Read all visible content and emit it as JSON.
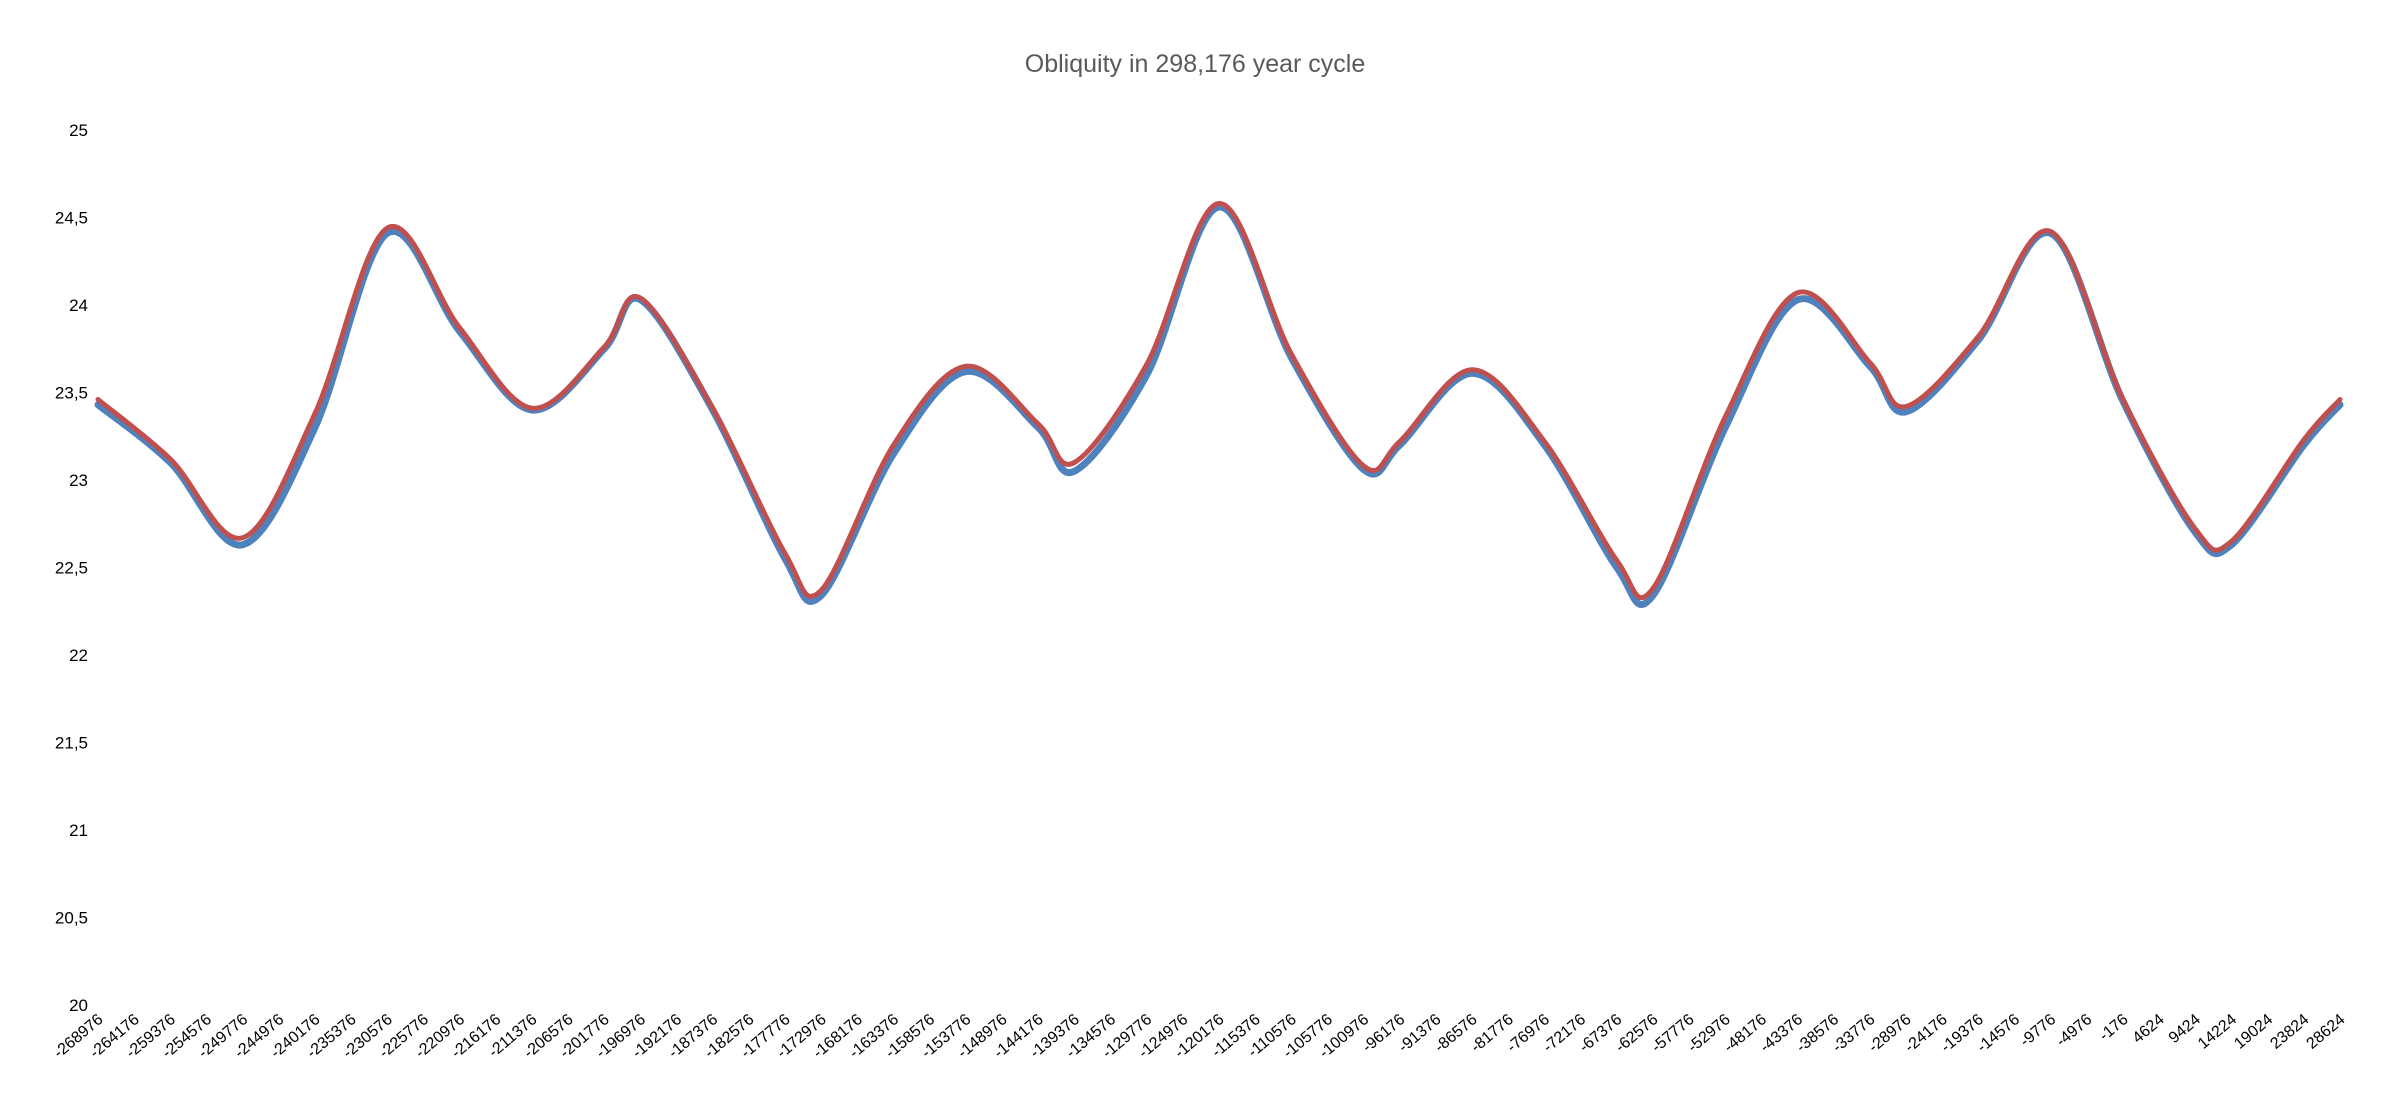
{
  "chart_data": {
    "type": "line",
    "title": "Obliquity in 298,176 year cycle",
    "xlabel": "",
    "ylabel": "",
    "ylim": [
      20,
      25
    ],
    "yticks": [
      "20",
      "20,5",
      "21",
      "21,5",
      "22",
      "22,5",
      "23",
      "23,5",
      "24",
      "24,5",
      "25"
    ],
    "grid": false,
    "legend": "none",
    "x": [
      -268976,
      -264176,
      -259376,
      -254576,
      -249776,
      -244976,
      -240176,
      -235376,
      -230576,
      -225776,
      -220976,
      -216176,
      -211376,
      -206576,
      -201776,
      -196976,
      -192176,
      -187376,
      -182576,
      -177776,
      -172976,
      -168176,
      -163376,
      -158576,
      -153776,
      -148976,
      -144176,
      -139376,
      -134576,
      -129776,
      -124976,
      -120176,
      -115376,
      -110576,
      -105776,
      -100976,
      -96176,
      -91376,
      -86576,
      -81776,
      -76976,
      -72176,
      -67376,
      -62576,
      -57776,
      -52976,
      -48176,
      -43376,
      -38576,
      -33776,
      -28976,
      -24176,
      -19376,
      -14576,
      -9776,
      -4976,
      -176,
      4624,
      9424,
      14224,
      19024,
      23824,
      28624
    ],
    "x_labels": [
      "-268976",
      "-264176",
      "-259376",
      "-254576",
      "-249776",
      "-244976",
      "-240176",
      "-235376",
      "-230576",
      "-225776",
      "-220976",
      "-216176",
      "-211376",
      "-206576",
      "-201776",
      "-196976",
      "-192176",
      "-187376",
      "-182576",
      "-177776",
      "-172976",
      "-168176",
      "-163376",
      "-158576",
      "-153776",
      "-148976",
      "-144176",
      "-139376",
      "-134576",
      "-129776",
      "-124976",
      "-120176",
      "-115376",
      "-110576",
      "-105776",
      "-100976",
      "-96176",
      "-91376",
      "-86576",
      "-81776",
      "-76976",
      "-72176",
      "-67376",
      "-62576",
      "-57776",
      "-52976",
      "-48176",
      "-43376",
      "-38576",
      "-33776",
      "-28976",
      "-24176",
      "-19376",
      "-14576",
      "-9776",
      "-4976",
      "-176",
      "4624",
      "9424",
      "14224",
      "19024",
      "23824",
      "28624"
    ],
    "series": [
      {
        "color": "#4f81bd",
        "values": [
          [
            -268976,
            23.43
          ],
          [
            -259376,
            23.1
          ],
          [
            -249776,
            22.63
          ],
          [
            -240176,
            23.3
          ],
          [
            -230576,
            24.41
          ],
          [
            -220976,
            23.85
          ],
          [
            -211376,
            23.4
          ],
          [
            -201776,
            23.75
          ],
          [
            -196976,
            24.03
          ],
          [
            -187376,
            23.4
          ],
          [
            -177776,
            22.55
          ],
          [
            -172976,
            22.34
          ],
          [
            -163376,
            23.15
          ],
          [
            -153776,
            23.62
          ],
          [
            -144176,
            23.3
          ],
          [
            -139376,
            23.05
          ],
          [
            -129776,
            23.6
          ],
          [
            -120176,
            24.56
          ],
          [
            -110576,
            23.7
          ],
          [
            -100976,
            23.06
          ],
          [
            -96176,
            23.2
          ],
          [
            -86576,
            23.61
          ],
          [
            -76976,
            23.2
          ],
          [
            -67376,
            22.5
          ],
          [
            -62576,
            22.34
          ],
          [
            -52976,
            23.3
          ],
          [
            -43376,
            24.03
          ],
          [
            -33776,
            23.65
          ],
          [
            -28976,
            23.39
          ],
          [
            -19376,
            23.8
          ],
          [
            -9776,
            24.41
          ],
          [
            -176,
            23.45
          ],
          [
            9424,
            22.7
          ],
          [
            14224,
            22.63
          ],
          [
            23824,
            23.2
          ],
          [
            28624,
            23.43
          ]
        ]
      },
      {
        "color": "#c0504d",
        "values": [
          [
            -268976,
            23.46
          ],
          [
            -259376,
            23.12
          ],
          [
            -249776,
            22.67
          ],
          [
            -240176,
            23.38
          ],
          [
            -230576,
            24.44
          ],
          [
            -220976,
            23.87
          ],
          [
            -211376,
            23.41
          ],
          [
            -201776,
            23.76
          ],
          [
            -196976,
            24.04
          ],
          [
            -187376,
            23.41
          ],
          [
            -177776,
            22.58
          ],
          [
            -172976,
            22.37
          ],
          [
            -163376,
            23.2
          ],
          [
            -153776,
            23.65
          ],
          [
            -144176,
            23.32
          ],
          [
            -139376,
            23.1
          ],
          [
            -129776,
            23.66
          ],
          [
            -120176,
            24.58
          ],
          [
            -110576,
            23.72
          ],
          [
            -100976,
            23.08
          ],
          [
            -96176,
            23.22
          ],
          [
            -86576,
            23.63
          ],
          [
            -76976,
            23.22
          ],
          [
            -67376,
            22.54
          ],
          [
            -62576,
            22.38
          ],
          [
            -52976,
            23.36
          ],
          [
            -43376,
            24.07
          ],
          [
            -33776,
            23.67
          ],
          [
            -28976,
            23.42
          ],
          [
            -19376,
            23.82
          ],
          [
            -9776,
            24.42
          ],
          [
            -176,
            23.46
          ],
          [
            9424,
            22.72
          ],
          [
            14224,
            22.65
          ],
          [
            23824,
            23.23
          ],
          [
            28624,
            23.46
          ]
        ]
      }
    ]
  }
}
